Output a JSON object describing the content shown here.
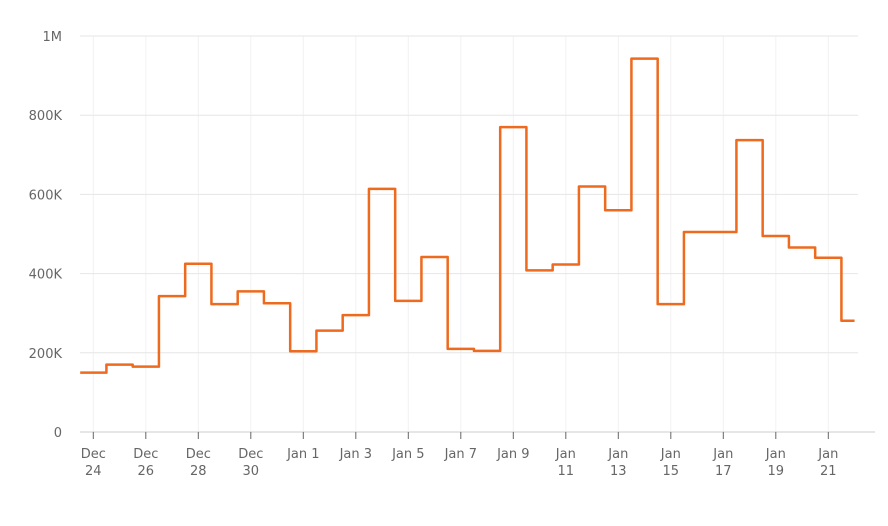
{
  "chart_data": {
    "type": "line",
    "step": true,
    "title": "",
    "xlabel": "",
    "ylabel": "",
    "ylim": [
      0,
      1000000
    ],
    "grid": true,
    "legend": "none",
    "line_color": "#ED6A1F",
    "x": [
      "Dec 24",
      "Dec 25",
      "Dec 26",
      "Dec 27",
      "Dec 28",
      "Dec 29",
      "Dec 30",
      "Dec 31",
      "Jan 1",
      "Jan 2",
      "Jan 3",
      "Jan 4",
      "Jan 5",
      "Jan 6",
      "Jan 7",
      "Jan 8",
      "Jan 9",
      "Jan 10",
      "Jan 11",
      "Jan 12",
      "Jan 13",
      "Jan 14",
      "Jan 15",
      "Jan 16",
      "Jan 17",
      "Jan 18",
      "Jan 19",
      "Jan 20",
      "Jan 21",
      "Jan 22"
    ],
    "values": [
      150000,
      170000,
      165000,
      343000,
      425000,
      323000,
      355000,
      325000,
      204000,
      256000,
      295000,
      614000,
      331000,
      442000,
      210000,
      205000,
      770000,
      408000,
      423000,
      620000,
      560000,
      943000,
      323000,
      505000,
      505000,
      737000,
      495000,
      466000,
      440000,
      281000
    ],
    "y_ticks": [
      {
        "label": "0",
        "value": 0
      },
      {
        "label": "200K",
        "value": 200000
      },
      {
        "label": "400K",
        "value": 400000
      },
      {
        "label": "600K",
        "value": 600000
      },
      {
        "label": "800K",
        "value": 800000
      },
      {
        "label": "1M",
        "value": 1000000
      }
    ],
    "x_ticks": [
      {
        "day_index": 0,
        "line1": "Dec",
        "line2": "24"
      },
      {
        "day_index": 2,
        "line1": "Dec",
        "line2": "26"
      },
      {
        "day_index": 4,
        "line1": "Dec",
        "line2": "28"
      },
      {
        "day_index": 6,
        "line1": "Dec",
        "line2": "30"
      },
      {
        "day_index": 8,
        "line1": "Jan 1",
        "line2": ""
      },
      {
        "day_index": 10,
        "line1": "Jan 3",
        "line2": ""
      },
      {
        "day_index": 12,
        "line1": "Jan 5",
        "line2": ""
      },
      {
        "day_index": 14,
        "line1": "Jan 7",
        "line2": ""
      },
      {
        "day_index": 16,
        "line1": "Jan 9",
        "line2": ""
      },
      {
        "day_index": 18,
        "line1": "Jan",
        "line2": "11"
      },
      {
        "day_index": 20,
        "line1": "Jan",
        "line2": "13"
      },
      {
        "day_index": 22,
        "line1": "Jan",
        "line2": "15"
      },
      {
        "day_index": 24,
        "line1": "Jan",
        "line2": "17"
      },
      {
        "day_index": 26,
        "line1": "Jan",
        "line2": "19"
      },
      {
        "day_index": 28,
        "line1": "Jan",
        "line2": "21"
      }
    ],
    "colors": {
      "h_gridline": "#e6e6e6",
      "v_gridline": "#f2f2f2",
      "axis_line": "#cccccc",
      "tick_mark": "#666666",
      "label_text": "#666666",
      "background": "#ffffff"
    }
  }
}
